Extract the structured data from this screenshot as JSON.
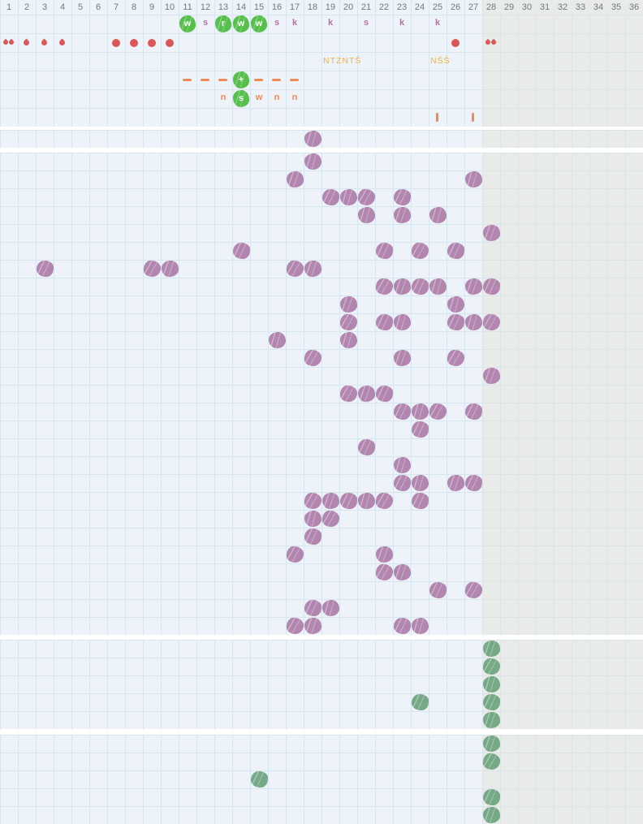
{
  "chart_data": {
    "type": "heatmap",
    "title": "",
    "columns": [
      "1",
      "2",
      "3",
      "4",
      "5",
      "6",
      "7",
      "8",
      "9",
      "10",
      "11",
      "12",
      "13",
      "14",
      "15",
      "16",
      "17",
      "18",
      "19",
      "20",
      "21",
      "22",
      "23",
      "24",
      "25",
      "26",
      "27",
      "28",
      "29",
      "30",
      "31",
      "32",
      "33",
      "34",
      "35",
      "36"
    ],
    "greyed_columns_from": 28,
    "colors": {
      "cell_bg": "#edf3f8",
      "grid_line": "#d7e5f0",
      "grey_bg": "#e9ebe9",
      "purple_marker": "#b286af",
      "green_marker": "#76a986",
      "badge_green": "#57bf4c",
      "red": "#dc5858",
      "orange": "#f08a55",
      "gold": "#eeb24c",
      "mauve_letter": "#b76fa8",
      "header_text": "#6e7a85"
    },
    "top_rows": {
      "letter_row": [
        {
          "col": 11,
          "kind": "badge",
          "text": "w"
        },
        {
          "col": 12,
          "kind": "letter-mauve",
          "text": "s"
        },
        {
          "col": 13,
          "kind": "badge",
          "text": "r"
        },
        {
          "col": 14,
          "kind": "badge",
          "text": "w"
        },
        {
          "col": 15,
          "kind": "badge",
          "text": "w"
        },
        {
          "col": 16,
          "kind": "letter-mauve",
          "text": "s"
        },
        {
          "col": 17,
          "kind": "letter-mauve",
          "text": "k"
        },
        {
          "col": 19,
          "kind": "letter-mauve",
          "text": "k"
        },
        {
          "col": 21,
          "kind": "letter-mauve",
          "text": "s"
        },
        {
          "col": 23,
          "kind": "letter-mauve",
          "text": "k"
        },
        {
          "col": 25,
          "kind": "letter-mauve",
          "text": "k"
        }
      ],
      "droplet_row": [
        {
          "col": 1,
          "kind": "double-drop"
        },
        {
          "col": 2,
          "kind": "drop"
        },
        {
          "col": 3,
          "kind": "drop"
        },
        {
          "col": 4,
          "kind": "drop"
        },
        {
          "col": 7,
          "kind": "dot"
        },
        {
          "col": 8,
          "kind": "dot"
        },
        {
          "col": 9,
          "kind": "dot"
        },
        {
          "col": 10,
          "kind": "dot"
        },
        {
          "col": 26,
          "kind": "dot"
        },
        {
          "col": 28,
          "kind": "double-drop"
        }
      ],
      "label_row": [
        {
          "col": 19,
          "kind": "label",
          "text": "NTZNTŚ"
        },
        {
          "col": 25,
          "kind": "label",
          "text": "NŚŚ"
        }
      ],
      "dash_row": [
        {
          "col": 11,
          "kind": "dash"
        },
        {
          "col": 12,
          "kind": "dash"
        },
        {
          "col": 13,
          "kind": "dash"
        },
        {
          "col": 14,
          "kind": "badge",
          "text": "+"
        },
        {
          "col": 15,
          "kind": "dash"
        },
        {
          "col": 16,
          "kind": "dash"
        },
        {
          "col": 17,
          "kind": "dash"
        }
      ],
      "sow_row": [
        {
          "col": 13,
          "kind": "letter-orange",
          "text": "n"
        },
        {
          "col": 14,
          "kind": "badge",
          "text": "s"
        },
        {
          "col": 15,
          "kind": "letter-orange",
          "text": "w"
        },
        {
          "col": 16,
          "kind": "letter-orange",
          "text": "n"
        },
        {
          "col": 17,
          "kind": "letter-orange",
          "text": "n"
        }
      ],
      "tick_row": [
        {
          "col": 25,
          "kind": "tick"
        },
        {
          "col": 27,
          "kind": "tick"
        }
      ]
    },
    "pre_band": {
      "rows": 1,
      "markers": [
        {
          "row": 1,
          "col": 18
        }
      ]
    },
    "main_band": {
      "rows": 27,
      "marker_color": "purple",
      "markers": [
        {
          "row": 1,
          "col": 18
        },
        {
          "row": 2,
          "col": 17
        },
        {
          "row": 2,
          "col": 27
        },
        {
          "row": 3,
          "col": 19
        },
        {
          "row": 3,
          "col": 20
        },
        {
          "row": 3,
          "col": 21
        },
        {
          "row": 3,
          "col": 23
        },
        {
          "row": 4,
          "col": 21
        },
        {
          "row": 4,
          "col": 23
        },
        {
          "row": 4,
          "col": 25
        },
        {
          "row": 5,
          "col": 28
        },
        {
          "row": 6,
          "col": 14
        },
        {
          "row": 6,
          "col": 22
        },
        {
          "row": 6,
          "col": 24
        },
        {
          "row": 6,
          "col": 26
        },
        {
          "row": 7,
          "col": 3
        },
        {
          "row": 7,
          "col": 9
        },
        {
          "row": 7,
          "col": 10
        },
        {
          "row": 7,
          "col": 17
        },
        {
          "row": 7,
          "col": 18
        },
        {
          "row": 8,
          "col": 22
        },
        {
          "row": 8,
          "col": 23
        },
        {
          "row": 8,
          "col": 24
        },
        {
          "row": 8,
          "col": 25
        },
        {
          "row": 8,
          "col": 27
        },
        {
          "row": 8,
          "col": 28
        },
        {
          "row": 9,
          "col": 20
        },
        {
          "row": 9,
          "col": 26
        },
        {
          "row": 10,
          "col": 20
        },
        {
          "row": 10,
          "col": 22
        },
        {
          "row": 10,
          "col": 23
        },
        {
          "row": 10,
          "col": 26
        },
        {
          "row": 10,
          "col": 27
        },
        {
          "row": 10,
          "col": 28
        },
        {
          "row": 11,
          "col": 16
        },
        {
          "row": 11,
          "col": 20
        },
        {
          "row": 12,
          "col": 18
        },
        {
          "row": 12,
          "col": 23
        },
        {
          "row": 12,
          "col": 26
        },
        {
          "row": 13,
          "col": 28
        },
        {
          "row": 14,
          "col": 20
        },
        {
          "row": 14,
          "col": 21
        },
        {
          "row": 14,
          "col": 22
        },
        {
          "row": 15,
          "col": 23
        },
        {
          "row": 15,
          "col": 24
        },
        {
          "row": 15,
          "col": 25
        },
        {
          "row": 15,
          "col": 27
        },
        {
          "row": 16,
          "col": 24
        },
        {
          "row": 17,
          "col": 21
        },
        {
          "row": 18,
          "col": 23
        },
        {
          "row": 19,
          "col": 23
        },
        {
          "row": 19,
          "col": 24
        },
        {
          "row": 19,
          "col": 26
        },
        {
          "row": 19,
          "col": 27
        },
        {
          "row": 20,
          "col": 18
        },
        {
          "row": 20,
          "col": 19
        },
        {
          "row": 20,
          "col": 20
        },
        {
          "row": 20,
          "col": 21
        },
        {
          "row": 20,
          "col": 22
        },
        {
          "row": 20,
          "col": 24
        },
        {
          "row": 21,
          "col": 18
        },
        {
          "row": 21,
          "col": 19
        },
        {
          "row": 22,
          "col": 18
        },
        {
          "row": 23,
          "col": 17
        },
        {
          "row": 23,
          "col": 22
        },
        {
          "row": 24,
          "col": 22
        },
        {
          "row": 24,
          "col": 23
        },
        {
          "row": 25,
          "col": 25
        },
        {
          "row": 25,
          "col": 27
        },
        {
          "row": 26,
          "col": 18
        },
        {
          "row": 26,
          "col": 19
        },
        {
          "row": 27,
          "col": 17
        },
        {
          "row": 27,
          "col": 18
        },
        {
          "row": 27,
          "col": 23
        },
        {
          "row": 27,
          "col": 24
        }
      ]
    },
    "band_a": {
      "rows": 5,
      "marker_color": "green",
      "markers": [
        {
          "row": 1,
          "col": 28
        },
        {
          "row": 2,
          "col": 28
        },
        {
          "row": 3,
          "col": 28
        },
        {
          "row": 4,
          "col": 24
        },
        {
          "row": 4,
          "col": 28
        },
        {
          "row": 5,
          "col": 28
        }
      ]
    },
    "band_b": {
      "rows": 5,
      "marker_color": "green",
      "markers": [
        {
          "row": 1,
          "col": 28
        },
        {
          "row": 2,
          "col": 28
        },
        {
          "row": 3,
          "col": 15
        },
        {
          "row": 4,
          "col": 28
        },
        {
          "row": 5,
          "col": 28
        }
      ]
    }
  }
}
